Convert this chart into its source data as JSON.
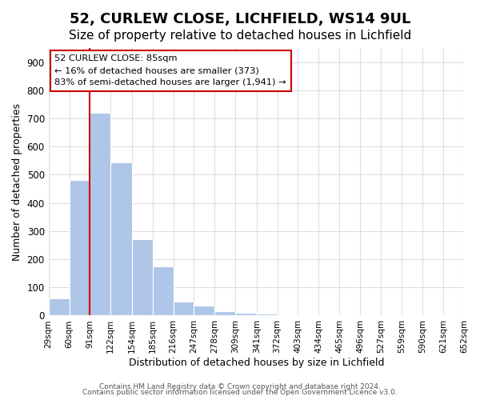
{
  "title": "52, CURLEW CLOSE, LICHFIELD, WS14 9UL",
  "subtitle": "Size of property relative to detached houses in Lichfield",
  "xlabel": "Distribution of detached houses by size in Lichfield",
  "ylabel": "Number of detached properties",
  "bar_values": [
    60,
    480,
    720,
    545,
    270,
    175,
    50,
    35,
    15,
    10,
    8,
    0,
    0,
    0,
    0,
    0,
    0,
    0,
    0,
    0
  ],
  "bar_edges": [
    29,
    60,
    91,
    122,
    154,
    185,
    216,
    247,
    278,
    309,
    341,
    372,
    403,
    434,
    465,
    496,
    527,
    559,
    590,
    621,
    652
  ],
  "bar_color": "#aec6e8",
  "bar_edge_color": "#ffffff",
  "property_line_x": 91,
  "property_line_color": "#cc0000",
  "ylim": [
    0,
    950
  ],
  "yticks": [
    0,
    100,
    200,
    300,
    400,
    500,
    600,
    700,
    800,
    900
  ],
  "annotation_title": "52 CURLEW CLOSE: 85sqm",
  "annotation_line1": "← 16% of detached houses are smaller (373)",
  "annotation_line2": "83% of semi-detached houses are larger (1,941) →",
  "annotation_box_color": "#ffffff",
  "annotation_box_edge": "#cc0000",
  "footer_line1": "Contains HM Land Registry data © Crown copyright and database right 2024.",
  "footer_line2": "Contains public sector information licensed under the Open Government Licence v3.0.",
  "background_color": "#ffffff",
  "grid_color": "#dddddd",
  "title_fontsize": 13,
  "subtitle_fontsize": 11,
  "tick_labels": [
    "29sqm",
    "60sqm",
    "91sqm",
    "122sqm",
    "154sqm",
    "185sqm",
    "216sqm",
    "247sqm",
    "278sqm",
    "309sqm",
    "341sqm",
    "372sqm",
    "403sqm",
    "434sqm",
    "465sqm",
    "496sqm",
    "527sqm",
    "559sqm",
    "590sqm",
    "621sqm",
    "652sqm"
  ]
}
